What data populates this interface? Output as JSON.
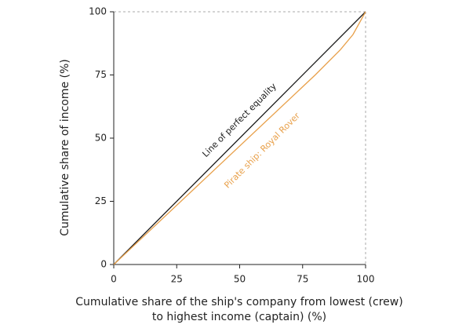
{
  "chart_data": {
    "type": "line",
    "x_label": "Cumulative share of the ship's company from lowest (crew) to highest income (captain) (%)",
    "y_label": "Cumulative share of income (%)",
    "xlim": [
      0,
      100
    ],
    "ylim": [
      0,
      100
    ],
    "xticks": [
      0,
      25,
      50,
      75,
      100
    ],
    "yticks": [
      0,
      25,
      50,
      75,
      100
    ],
    "series": [
      {
        "name": "Line of perfect equality",
        "color": "#1a1a1a",
        "x": [
          0,
          100
        ],
        "values": [
          0,
          100
        ]
      },
      {
        "name": "Pirate ship: Royal Rover",
        "color": "#e8a04a",
        "x": [
          0,
          80,
          90,
          95,
          100
        ],
        "values": [
          0,
          75,
          85,
          91,
          100
        ]
      }
    ]
  }
}
